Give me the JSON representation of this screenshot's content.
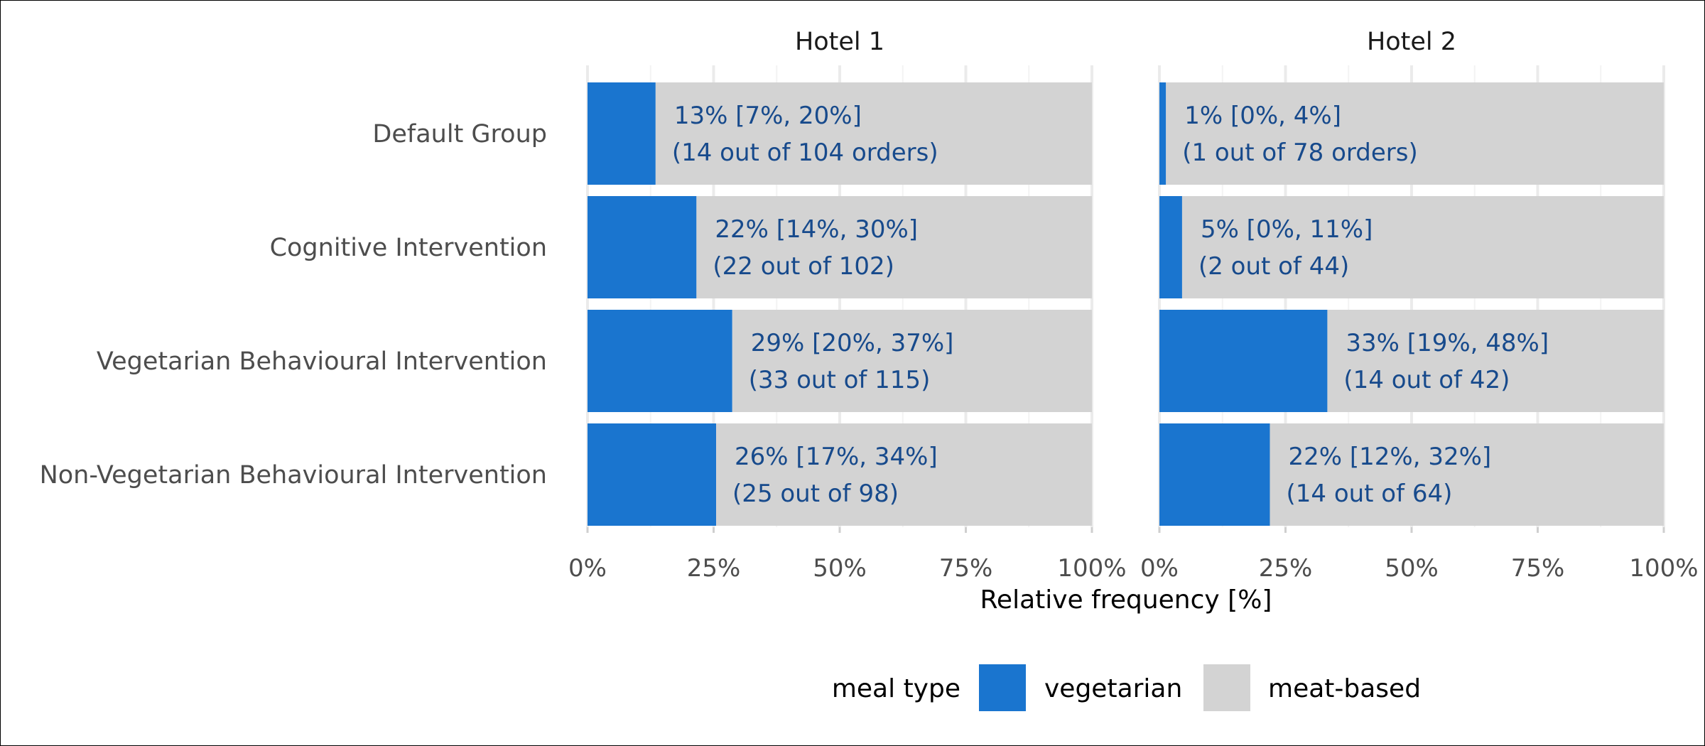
{
  "chart_data": {
    "type": "bar",
    "stacked": true,
    "orientation": "horizontal",
    "categories": [
      "Default Group",
      "Cognitive Intervention",
      "Vegetarian Behavioural Intervention",
      "Non-Vegetarian Behavioural Intervention"
    ],
    "xlabel": "Relative frequency [%]",
    "xlim": [
      0,
      100
    ],
    "x_ticks": [
      "0%",
      "25%",
      "50%",
      "75%",
      "100%"
    ],
    "legend": {
      "title": "meal type",
      "position": "bottom",
      "entries": [
        {
          "name": "vegetarian",
          "color": "#1a75cf"
        },
        {
          "name": "meat-based",
          "color": "#d3d3d3"
        }
      ]
    },
    "panels": [
      {
        "title": "Hotel 1",
        "series": [
          {
            "name": "vegetarian",
            "values": [
              13.5,
              21.6,
              28.7,
              25.5
            ]
          },
          {
            "name": "meat-based",
            "values": [
              86.5,
              78.4,
              71.3,
              74.5
            ]
          }
        ],
        "labels": [
          [
            "13% [7%, 20%]",
            " (14 out of 104 orders)"
          ],
          [
            "22% [14%, 30%]",
            "(22 out of 102)"
          ],
          [
            "29% [20%, 37%]",
            "(33 out of 115)"
          ],
          [
            "26% [17%, 34%]",
            "(25 out of 98)"
          ]
        ]
      },
      {
        "title": "Hotel 2",
        "series": [
          {
            "name": "vegetarian",
            "values": [
              1.3,
              4.5,
              33.3,
              21.9
            ]
          },
          {
            "name": "meat-based",
            "values": [
              98.7,
              95.5,
              66.7,
              78.1
            ]
          }
        ],
        "labels": [
          [
            "1% [0%, 4%]",
            " (1 out of 78 orders)"
          ],
          [
            "5% [0%, 11%]",
            "(2 out of 44)"
          ],
          [
            "33% [19%, 48%]",
            "(14 out of 42)"
          ],
          [
            "22% [12%, 32%]",
            "(14 out of 64)"
          ]
        ]
      }
    ]
  }
}
